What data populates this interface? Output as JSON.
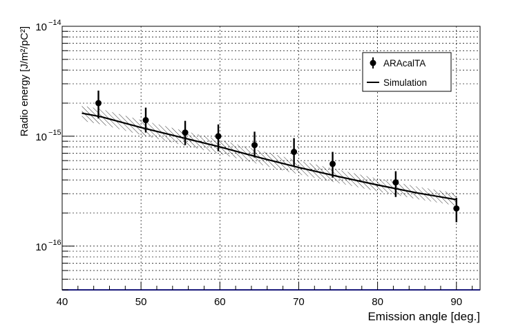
{
  "chart_data": {
    "type": "scatter",
    "title": "",
    "xlabel": "Emission angle [deg.]",
    "ylabel": "Radio energy [J/m²/pC²]",
    "xlim": [
      40,
      93
    ],
    "ylim": [
      4e-17,
      1e-14
    ],
    "yscale": "log",
    "grid": true,
    "legend_position": "top-right",
    "x_ticks": [
      40,
      50,
      60,
      70,
      80,
      90
    ],
    "x_tick_labels": [
      "40",
      "50",
      "60",
      "70",
      "80",
      "90"
    ],
    "y_major_ticks": [
      1e-16,
      1e-15,
      1e-14
    ],
    "y_tick_base": "10",
    "y_tick_exponents": [
      "−16",
      "−15",
      "−14"
    ],
    "legend": [
      {
        "label": "ARAcalTA",
        "style": "marker"
      },
      {
        "label": "Simulation",
        "style": "line"
      }
    ],
    "series": [
      {
        "name": "ARAcalTA",
        "type": "scatter",
        "color": "#000000",
        "x": [
          44.6,
          50.6,
          55.6,
          59.8,
          64.4,
          69.4,
          74.3,
          82.3,
          90.0
        ],
        "y": [
          2e-15,
          1.4e-15,
          1.08e-15,
          1e-15,
          8.3e-16,
          7.2e-16,
          5.6e-16,
          3.8e-16,
          2.2e-16
        ],
        "y_err_low": [
          1.45e-15,
          1.08e-15,
          8.3e-16,
          7.3e-16,
          6.4e-16,
          5.3e-16,
          4.2e-16,
          2.8e-16,
          1.65e-16
        ],
        "y_err_high": [
          2.6e-15,
          1.82e-15,
          1.38e-15,
          1.28e-15,
          1.1e-15,
          9.6e-16,
          7.2e-16,
          4.8e-16,
          2.75e-16
        ]
      },
      {
        "name": "Simulation",
        "type": "line",
        "color": "#000000",
        "x": [
          42.5,
          45,
          50,
          55,
          60,
          65,
          70,
          75,
          80,
          85,
          90
        ],
        "y": [
          1.62e-15,
          1.5e-15,
          1.2e-15,
          9.8e-16,
          8e-16,
          6.4e-16,
          5.2e-16,
          4.3e-16,
          3.6e-16,
          3.05e-16,
          2.65e-16
        ],
        "band_low": [
          1.38e-15,
          1.28e-15,
          1.03e-15,
          8.4e-16,
          6.9e-16,
          5.55e-16,
          4.5e-16,
          3.75e-16,
          3.15e-16,
          2.68e-16,
          2.33e-16
        ],
        "band_high": [
          1.9e-15,
          1.76e-15,
          1.4e-15,
          1.14e-15,
          9.3e-16,
          7.4e-16,
          6e-16,
          4.95e-16,
          4.12e-16,
          3.48e-16,
          3.02e-16
        ]
      }
    ]
  }
}
